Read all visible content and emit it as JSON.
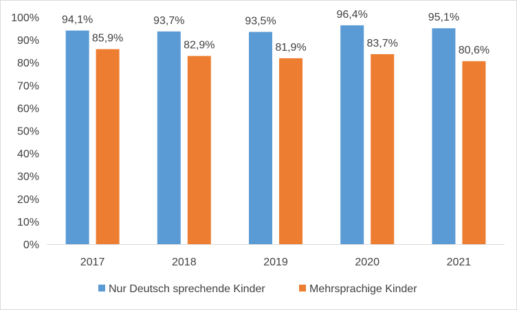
{
  "chart_data": {
    "type": "bar",
    "categories": [
      "2017",
      "2018",
      "2019",
      "2020",
      "2021"
    ],
    "series": [
      {
        "name": "Nur Deutsch sprechende Kinder",
        "color": "#5b9bd5",
        "values": [
          94.1,
          93.7,
          93.5,
          96.4,
          95.1
        ],
        "labels": [
          "94,1%",
          "93,7%",
          "93,5%",
          "96,4%",
          "95,1%"
        ]
      },
      {
        "name": "Mehrsprachige Kinder",
        "color": "#ed7d31",
        "values": [
          85.9,
          82.9,
          81.9,
          83.7,
          80.6
        ],
        "labels": [
          "85,9%",
          "82,9%",
          "81,9%",
          "83,7%",
          "80,6%"
        ]
      }
    ],
    "ylim": [
      0,
      100
    ],
    "yticks": [
      0,
      10,
      20,
      30,
      40,
      50,
      60,
      70,
      80,
      90,
      100
    ],
    "ytick_labels": [
      "0%",
      "10%",
      "20%",
      "30%",
      "40%",
      "50%",
      "60%",
      "70%",
      "80%",
      "90%",
      "100%"
    ],
    "grid": false,
    "legend_position": "bottom"
  }
}
